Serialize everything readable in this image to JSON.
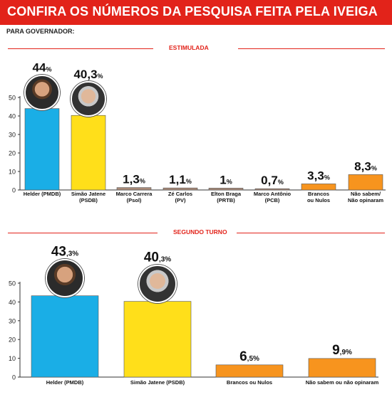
{
  "header": {
    "title": "CONFIRA OS NÚMEROS DA PESQUISA FEITA PELA IVEIGA",
    "subtitle": "PARA GOVERNADOR:"
  },
  "colors": {
    "banner": "#e2231a",
    "helder": "#1aaee6",
    "jatene": "#ffdf1a",
    "minor": "#a98a78",
    "orange": "#f7941e",
    "axis": "#333333"
  },
  "chart_data": [
    {
      "type": "bar",
      "title": "ESTIMULADA",
      "ylim": [
        0,
        50
      ],
      "yticks": [
        0,
        10,
        20,
        30,
        40,
        50
      ],
      "categories": [
        "Helder (PMDB)",
        "Simão Jatene (PSDB)",
        "Marco Carrera (Psol)",
        "Zé Carlos (PV)",
        "Elton Braga (PRTB)",
        "Marco Antônio (PCB)",
        "Brancos ou Nulos",
        "Não sabem/ Não opinaram"
      ],
      "category_lines": [
        [
          "Helder (PMDB)"
        ],
        [
          "Simão Jatene",
          "(PSDB)"
        ],
        [
          "Marco Carrera",
          "(Psol)"
        ],
        [
          "Zé Carlos",
          "(PV)"
        ],
        [
          "Elton Braga",
          "(PRTB)"
        ],
        [
          "Marco Antônio",
          "(PCB)"
        ],
        [
          "Brancos",
          "ou Nulos"
        ],
        [
          "Não sabem/",
          "Não opinaram"
        ]
      ],
      "values": [
        44,
        40.3,
        1.3,
        1.1,
        1,
        0.7,
        3.3,
        8.3
      ],
      "value_labels": [
        [
          "44",
          "%"
        ],
        [
          "40,3",
          "%"
        ],
        [
          "1,3",
          "%"
        ],
        [
          "1,1",
          "%"
        ],
        [
          "1",
          "%"
        ],
        [
          "0,7",
          "%"
        ],
        [
          "3,3",
          "%"
        ],
        [
          "8,3",
          "%"
        ]
      ],
      "bar_colors": [
        "#1aaee6",
        "#ffdf1a",
        "#a98a78",
        "#a98a78",
        "#a98a78",
        "#a98a78",
        "#f7941e",
        "#f7941e"
      ],
      "photos": [
        "helder",
        "jatene"
      ],
      "grid": false
    },
    {
      "type": "bar",
      "title": "SEGUNDO TURNO",
      "ylim": [
        0,
        50
      ],
      "yticks": [
        0,
        10,
        20,
        30,
        40,
        50
      ],
      "categories": [
        "Helder (PMDB)",
        "Simão Jatene (PSDB)",
        "Brancos ou Nulos",
        "Não sabem ou não opinaram"
      ],
      "category_lines": [
        [
          "Helder (PMDB)"
        ],
        [
          "Simão Jatene (PSDB)"
        ],
        [
          "Brancos ou Nulos"
        ],
        [
          "Não sabem ou não opinaram"
        ]
      ],
      "values": [
        43.3,
        40.3,
        6.5,
        9.9
      ],
      "value_labels": [
        [
          "43",
          ",3%"
        ],
        [
          "40",
          ",3%"
        ],
        [
          "6",
          ",5%"
        ],
        [
          "9",
          ",9%"
        ]
      ],
      "bar_colors": [
        "#1aaee6",
        "#ffdf1a",
        "#f7941e",
        "#f7941e"
      ],
      "photos": [
        "helder",
        "jatene"
      ],
      "grid": false
    }
  ]
}
